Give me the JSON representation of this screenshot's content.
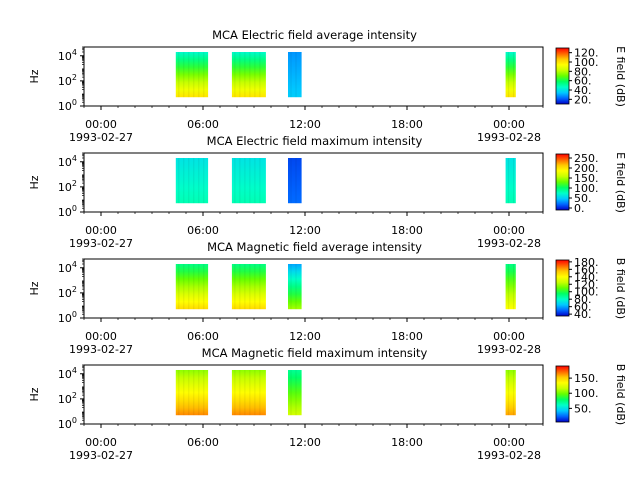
{
  "chart_data": [
    {
      "type": "heatmap",
      "title": "MCA  Electric field average intensity",
      "ylabel": "Hz",
      "yscale": "log",
      "ylim": [
        1,
        50000
      ],
      "yticks": [
        {
          "exp": "0"
        },
        {
          "exp": "2"
        },
        {
          "exp": "4"
        }
      ],
      "xlim_hours": [
        -1,
        26
      ],
      "xticks": [
        {
          "time": "00:00",
          "date": "1993-02-27"
        },
        {
          "time": "06:00",
          "date": ""
        },
        {
          "time": "12:00",
          "date": ""
        },
        {
          "time": "18:00",
          "date": ""
        },
        {
          "time": "00:00",
          "date": "1993-02-28"
        }
      ],
      "colorbar": {
        "label": "E field (dB)",
        "ticks": [
          "120.",
          "100.",
          "80.",
          "60.",
          "40.",
          "20."
        ],
        "tick_values": [
          120,
          100,
          80,
          60,
          40,
          20
        ],
        "range": [
          10,
          130
        ]
      },
      "blocks": [
        {
          "start_h": 4.4,
          "end_h": 6.3,
          "fmin_hz": 5,
          "fmax_hz": 20000,
          "level_low": 100,
          "level_high": 45
        },
        {
          "start_h": 7.7,
          "end_h": 9.7,
          "fmin_hz": 5,
          "fmax_hz": 20000,
          "level_low": 100,
          "level_high": 45
        },
        {
          "start_h": 11.0,
          "end_h": 11.8,
          "fmin_hz": 5,
          "fmax_hz": 20000,
          "level_low": 35,
          "level_high": 28
        },
        {
          "start_h": 23.8,
          "end_h": 24.4,
          "fmin_hz": 5,
          "fmax_hz": 20000,
          "level_low": 100,
          "level_high": 45
        }
      ]
    },
    {
      "type": "heatmap",
      "title": "MCA  Electric field maximum intensity",
      "ylabel": "Hz",
      "yscale": "log",
      "ylim": [
        1,
        50000
      ],
      "yticks": [
        {
          "exp": "0"
        },
        {
          "exp": "2"
        },
        {
          "exp": "4"
        }
      ],
      "xlim_hours": [
        -1,
        26
      ],
      "xticks": [
        {
          "time": "00:00",
          "date": "1993-02-27"
        },
        {
          "time": "06:00",
          "date": ""
        },
        {
          "time": "12:00",
          "date": ""
        },
        {
          "time": "18:00",
          "date": ""
        },
        {
          "time": "00:00",
          "date": "1993-02-28"
        }
      ],
      "colorbar": {
        "label": "E field (dB)",
        "ticks": [
          "250.",
          "200.",
          "150.",
          "100.",
          "50.",
          "0."
        ],
        "tick_values": [
          250,
          200,
          150,
          100,
          50,
          0
        ],
        "range": [
          -10,
          270
        ]
      },
      "blocks": [
        {
          "start_h": 4.4,
          "end_h": 6.3,
          "fmin_hz": 5,
          "fmax_hz": 20000,
          "level_low": 80,
          "level_high": 60
        },
        {
          "start_h": 7.7,
          "end_h": 9.7,
          "fmin_hz": 5,
          "fmax_hz": 20000,
          "level_low": 80,
          "level_high": 60
        },
        {
          "start_h": 11.0,
          "end_h": 11.8,
          "fmin_hz": 5,
          "fmax_hz": 20000,
          "level_low": 20,
          "level_high": 10
        },
        {
          "start_h": 23.8,
          "end_h": 24.4,
          "fmin_hz": 5,
          "fmax_hz": 20000,
          "level_low": 80,
          "level_high": 60
        }
      ]
    },
    {
      "type": "heatmap",
      "title": "MCA  Magnetic field average intensity",
      "ylabel": "Hz",
      "yscale": "log",
      "ylim": [
        1,
        50000
      ],
      "yticks": [
        {
          "exp": "0"
        },
        {
          "exp": "2"
        },
        {
          "exp": "4"
        }
      ],
      "xlim_hours": [
        -1,
        26
      ],
      "xticks": [
        {
          "time": "00:00",
          "date": "1993-02-27"
        },
        {
          "time": "06:00",
          "date": ""
        },
        {
          "time": "12:00",
          "date": ""
        },
        {
          "time": "18:00",
          "date": ""
        },
        {
          "time": "00:00",
          "date": "1993-02-28"
        }
      ],
      "colorbar": {
        "label": "B field (dB)",
        "ticks": [
          "180.",
          "160.",
          "140.",
          "120.",
          "100.",
          "80.",
          "60.",
          "40."
        ],
        "tick_values": [
          180,
          160,
          140,
          120,
          100,
          80,
          60,
          40
        ],
        "range": [
          35,
          185
        ]
      },
      "blocks": [
        {
          "start_h": 4.4,
          "end_h": 6.3,
          "fmin_hz": 5,
          "fmax_hz": 20000,
          "level_low": 150,
          "level_high": 90
        },
        {
          "start_h": 7.7,
          "end_h": 9.7,
          "fmin_hz": 5,
          "fmax_hz": 20000,
          "level_low": 150,
          "level_high": 90
        },
        {
          "start_h": 11.0,
          "end_h": 11.8,
          "fmin_hz": 5,
          "fmax_hz": 20000,
          "level_low": 120,
          "level_high": 60
        },
        {
          "start_h": 23.8,
          "end_h": 24.4,
          "fmin_hz": 5,
          "fmax_hz": 20000,
          "level_low": 140,
          "level_high": 90
        }
      ]
    },
    {
      "type": "heatmap",
      "title": "MCA  Magnetic field maximum intensity",
      "ylabel": "Hz",
      "yscale": "log",
      "ylim": [
        1,
        50000
      ],
      "yticks": [
        {
          "exp": "0"
        },
        {
          "exp": "2"
        },
        {
          "exp": "4"
        }
      ],
      "xlim_hours": [
        -1,
        26
      ],
      "xticks": [
        {
          "time": "00:00",
          "date": "1993-02-27"
        },
        {
          "time": "06:00",
          "date": ""
        },
        {
          "time": "12:00",
          "date": ""
        },
        {
          "time": "18:00",
          "date": ""
        },
        {
          "time": "00:00",
          "date": "1993-02-28"
        }
      ],
      "colorbar": {
        "label": "B field (dB)",
        "ticks": [
          "150.",
          "100.",
          "50."
        ],
        "tick_values": [
          150,
          100,
          50
        ],
        "range": [
          5,
          190
        ]
      },
      "blocks": [
        {
          "start_h": 4.4,
          "end_h": 6.3,
          "fmin_hz": 5,
          "fmax_hz": 20000,
          "level_low": 165,
          "level_high": 105
        },
        {
          "start_h": 7.7,
          "end_h": 9.7,
          "fmin_hz": 5,
          "fmax_hz": 20000,
          "level_low": 165,
          "level_high": 105
        },
        {
          "start_h": 11.0,
          "end_h": 11.8,
          "fmin_hz": 5,
          "fmax_hz": 20000,
          "level_low": 120,
          "level_high": 70
        },
        {
          "start_h": 23.8,
          "end_h": 24.4,
          "fmin_hz": 5,
          "fmax_hz": 20000,
          "level_low": 160,
          "level_high": 105
        }
      ]
    }
  ],
  "colormap": [
    "#0000c8",
    "#0064ff",
    "#00c8ff",
    "#00ffc8",
    "#00ff64",
    "#64ff00",
    "#c8ff00",
    "#ffff00",
    "#ffc800",
    "#ff6400",
    "#ff0000"
  ]
}
